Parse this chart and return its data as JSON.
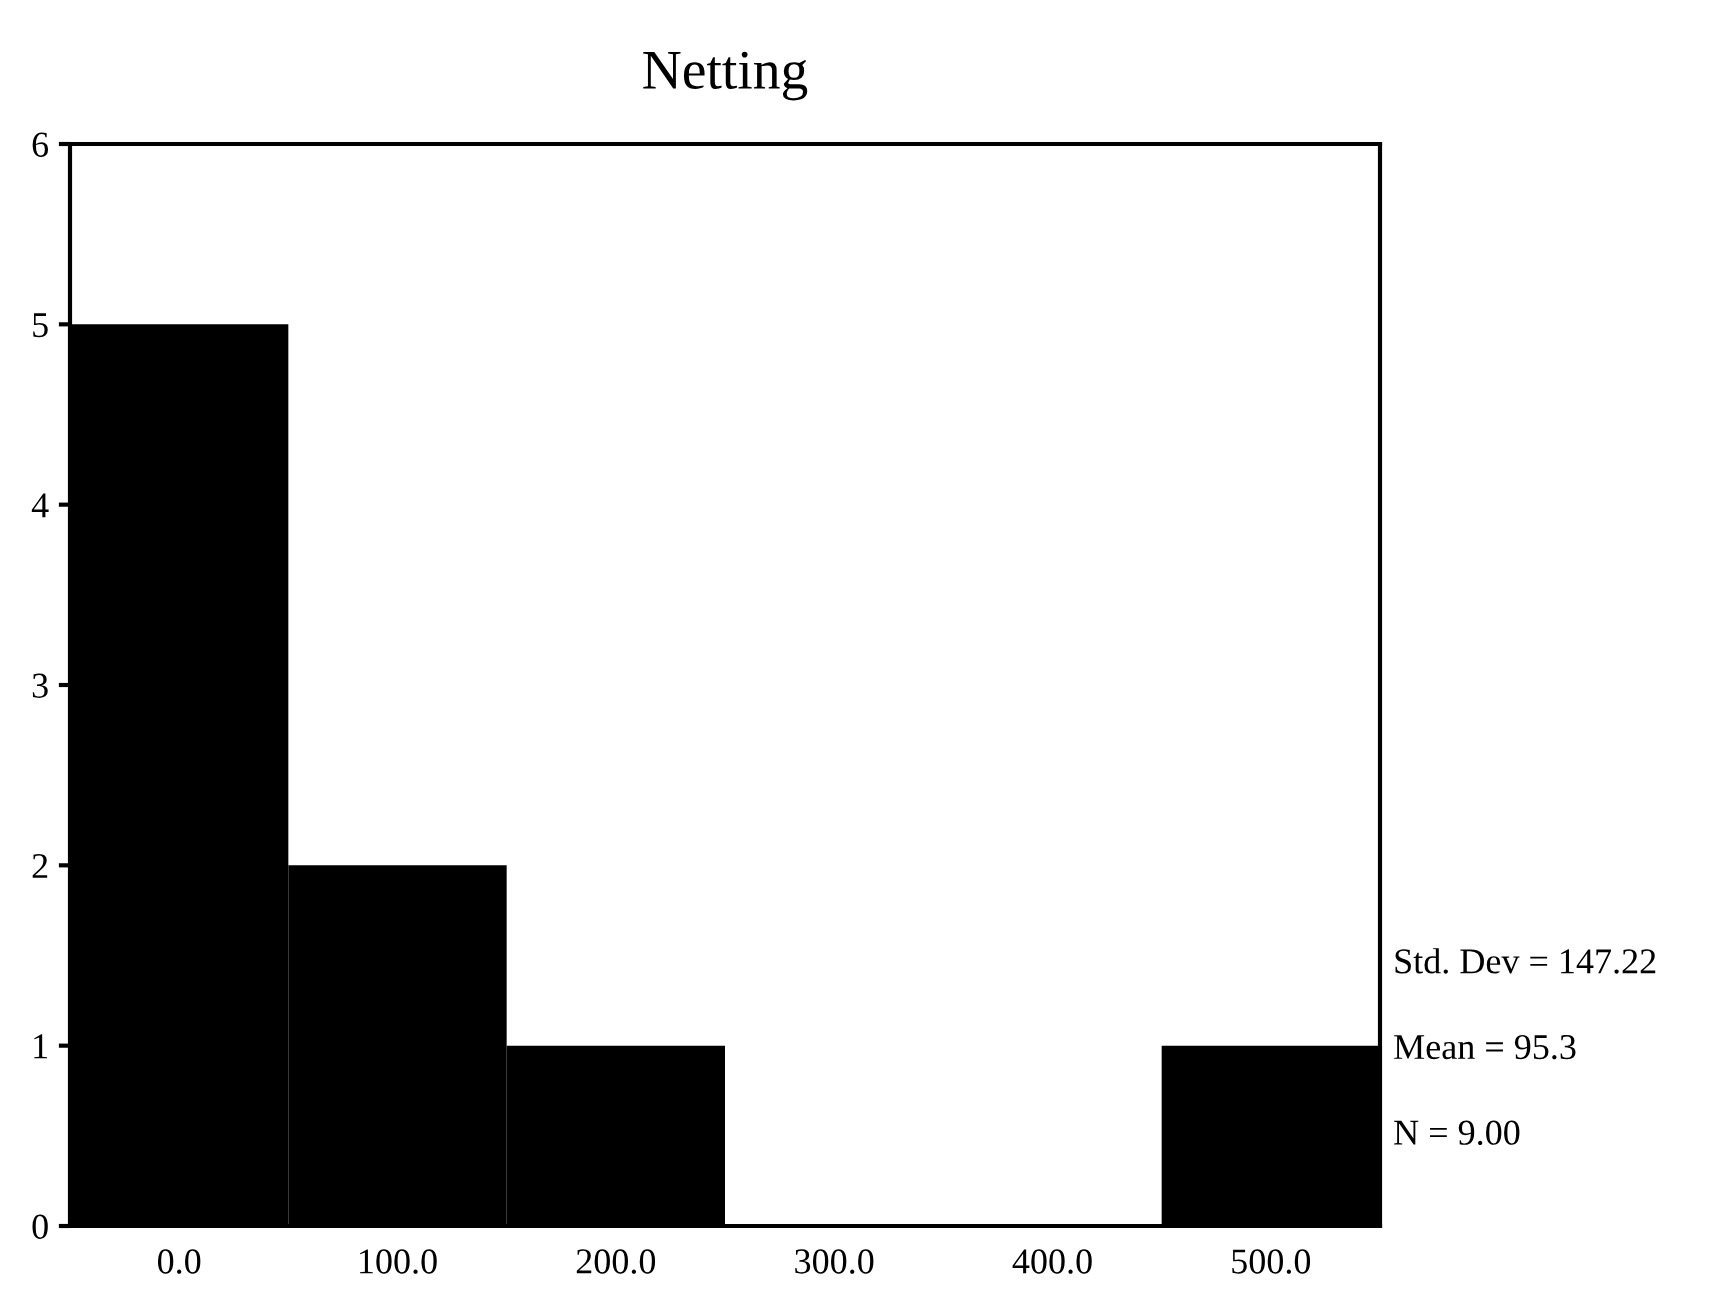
{
  "chart_data": {
    "type": "bar",
    "title": "Netting",
    "categories": [
      "0.0",
      "100.0",
      "200.0",
      "300.0",
      "400.0",
      "500.0"
    ],
    "values": [
      5,
      2,
      1,
      0,
      0,
      1
    ],
    "color": "#000000",
    "ylim": [
      0,
      6
    ],
    "yticks": [
      0,
      1,
      2,
      3,
      4,
      5,
      6
    ],
    "grid": false,
    "annotations": [
      "Std. Dev = 147.22",
      "Mean = 95.3",
      "N = 9.00"
    ]
  }
}
